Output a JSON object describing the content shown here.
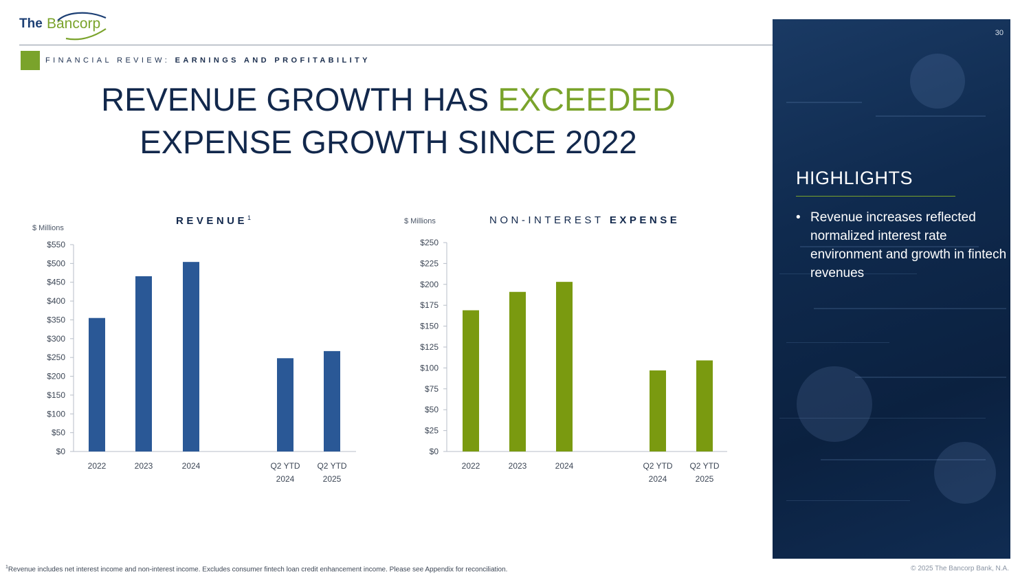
{
  "brand": {
    "logo_prefix": "The",
    "logo_name": "Bancorp",
    "colors": {
      "navy": "#12284c",
      "green": "#7aa32b",
      "bar_blue": "#2a5896",
      "bar_green": "#7a9a10"
    }
  },
  "header": {
    "section_prefix": "FINANCIAL REVIEW:",
    "section_emphasis": "EARNINGS AND PROFITABILITY",
    "page_number": "30"
  },
  "title": {
    "part1": "REVENUE GROWTH HAS ",
    "accent": "EXCEEDED",
    "part2": " EXPENSE GROWTH SINCE 2022"
  },
  "highlights": {
    "heading": "HIGHLIGHTS",
    "bullets": [
      "Revenue increases reflected normalized interest rate environment and growth in fintech revenues"
    ]
  },
  "chart_data": [
    {
      "type": "bar",
      "title": "REVENUE",
      "title_superscript": "1",
      "unit_label": "$ Millions",
      "categories": [
        [
          "2022"
        ],
        [
          "2023"
        ],
        [
          "2024"
        ],
        [
          "Q2 YTD",
          "2024"
        ],
        [
          "Q2 YTD",
          "2025"
        ]
      ],
      "values": [
        355,
        466,
        504,
        248,
        267
      ],
      "ylim": [
        0,
        550
      ],
      "yticks": [
        "$0",
        "$50",
        "$100",
        "$150",
        "$200",
        "$250",
        "$300",
        "$350",
        "$400",
        "$450",
        "$500",
        "$550"
      ],
      "color": "#2a5896"
    },
    {
      "type": "bar",
      "title_light": "NON-INTEREST",
      "title_bold": "EXPENSE",
      "unit_label": "$ Millions",
      "categories": [
        [
          "2022"
        ],
        [
          "2023"
        ],
        [
          "2024"
        ],
        [
          "Q2 YTD",
          "2024"
        ],
        [
          "Q2 YTD",
          "2025"
        ]
      ],
      "values": [
        169,
        191,
        203,
        97,
        109
      ],
      "ylim": [
        0,
        250
      ],
      "yticks": [
        "$0",
        "$25",
        "$50",
        "$75",
        "$100",
        "$125",
        "$150",
        "$175",
        "$200",
        "$225",
        "$250"
      ],
      "color": "#7a9a10"
    }
  ],
  "footer": {
    "footnote_marker": "1",
    "footnote": "Revenue includes net interest income and non-interest income. Excludes consumer fintech loan credit enhancement income. Please see Appendix for reconciliation.",
    "copyright": "© 2025 The Bancorp Bank, N.A."
  }
}
